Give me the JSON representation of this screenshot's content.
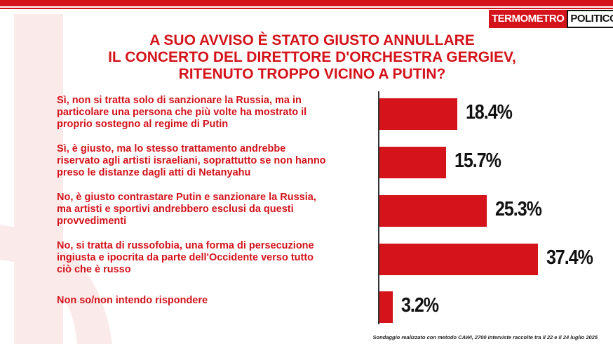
{
  "brand": {
    "part1": "TERMOMETRO",
    "part2": "POLITICO"
  },
  "title_lines": [
    "A SUO AVVISO È STATO GIUSTO ANNULLARE",
    "IL CONCERTO DEL DIRETTORE D'ORCHESTRA GERGIEV,",
    "RITENUTO TROPPO VICINO A PUTIN?"
  ],
  "chart_data": {
    "type": "bar",
    "orientation": "horizontal",
    "categories": [
      [
        "Sì, non si tratta solo di sanzionare la Russia, ma in",
        "particolare una persona che più volte ha mostrato il",
        "proprio sostegno al regime di Putin"
      ],
      [
        "Sì, è giusto, ma lo stesso trattamento andrebbe",
        "riservato agli artisti israeliani, soprattutto se non hanno",
        "preso le distanze dagli atti di Netanyahu"
      ],
      [
        "No, è giusto contrastare Putin e sanzionare la Russia,",
        "ma artisti e sportivi andrebbero esclusi da questi",
        "provvedimenti"
      ],
      [
        "No, si tratta di russofobia, una forma di persecuzione",
        "ingiusta e ipocrita da parte dell'Occidente verso tutto",
        "ciò che è russo"
      ],
      [
        "Non so/non intendo rispondere"
      ]
    ],
    "values": [
      18.4,
      15.7,
      25.3,
      37.4,
      3.2
    ],
    "value_labels": [
      "18.4%",
      "15.7%",
      "25.3%",
      "37.4%",
      "3.2%"
    ],
    "color": "#d4131b"
  },
  "footer": "Sondaggio realizzato con metodo CAWI, 2700 interviste raccolte tra il 22 e il 24 luglio 2025"
}
